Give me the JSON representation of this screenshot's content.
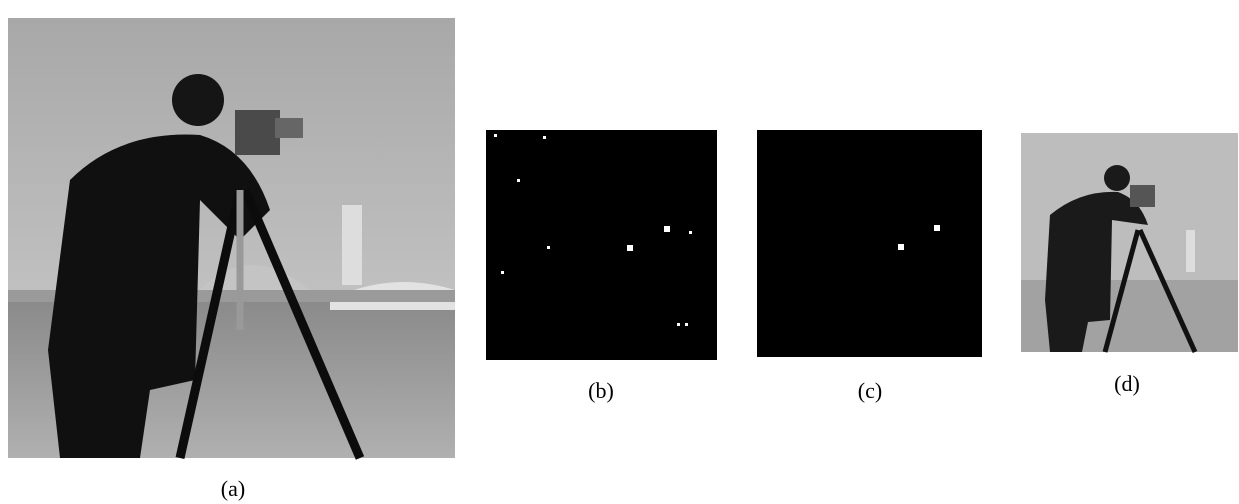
{
  "figures": [
    {
      "caption": "(a)"
    },
    {
      "caption": "(b)"
    },
    {
      "caption": "(c)"
    },
    {
      "caption": "(d)"
    }
  ]
}
